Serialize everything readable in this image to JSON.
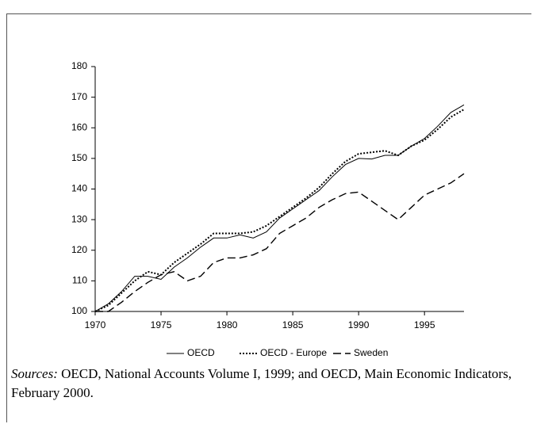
{
  "chart_data": {
    "type": "line",
    "x": [
      1970,
      1971,
      1972,
      1973,
      1974,
      1975,
      1976,
      1977,
      1978,
      1979,
      1980,
      1981,
      1982,
      1983,
      1984,
      1985,
      1986,
      1987,
      1988,
      1989,
      1990,
      1991,
      1992,
      1993,
      1994,
      1995,
      1996,
      1997,
      1998
    ],
    "series": [
      {
        "name": "OECD",
        "color": "#000000",
        "style": "solid",
        "values": [
          100,
          102.5,
          106.5,
          111.5,
          111.5,
          110.5,
          114.5,
          117.5,
          121,
          124,
          124,
          125,
          124,
          126,
          130.5,
          133.5,
          136.5,
          139.5,
          144,
          148,
          150,
          149.8,
          151,
          151,
          154,
          156.5,
          160.5,
          165,
          167.5
        ]
      },
      {
        "name": "OECD - Europe",
        "color": "#000000",
        "style": "dotted",
        "values": [
          100,
          102,
          106,
          110,
          113,
          112,
          116,
          119,
          122,
          125.5,
          125.5,
          125.5,
          126,
          128,
          131,
          134,
          137,
          140.5,
          145,
          149,
          151.5,
          152,
          152.5,
          151,
          154,
          156,
          159.5,
          163.5,
          166
        ]
      },
      {
        "name": "Sweden",
        "color": "#000000",
        "style": "dashed",
        "values": [
          100,
          100,
          103,
          106.5,
          109.5,
          112,
          113,
          110,
          111.5,
          116,
          117.5,
          117.5,
          118.5,
          120.5,
          125.5,
          128,
          130.5,
          134,
          136.5,
          138.5,
          139,
          136,
          133,
          130,
          134,
          138,
          140,
          142,
          145
        ]
      }
    ],
    "xlim": [
      1970,
      1998
    ],
    "xticks": [
      1970,
      1975,
      1980,
      1985,
      1990,
      1995
    ],
    "ylim": [
      100,
      180
    ],
    "yticks": [
      100,
      110,
      120,
      130,
      140,
      150,
      160,
      170,
      180
    ],
    "legend": "bottom",
    "note_label": "Sources:",
    "note": "OECD, National Accounts Volume I, 1999; and OECD, Main Economic Indicators, February 2000."
  }
}
